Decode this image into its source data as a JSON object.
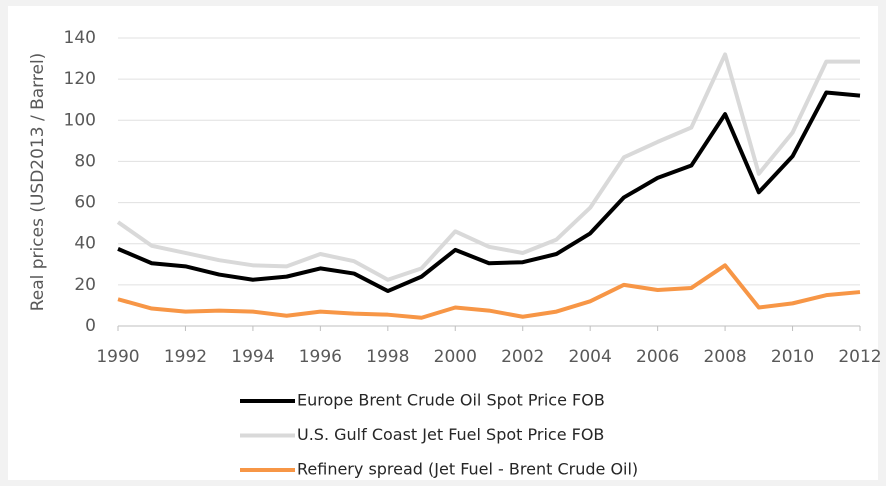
{
  "chart_data": {
    "type": "line",
    "y_label": "Real prices (USD2013 / Barrel)",
    "x": [
      1990,
      1991,
      1992,
      1993,
      1994,
      1995,
      1996,
      1997,
      1998,
      1999,
      2000,
      2001,
      2002,
      2003,
      2004,
      2005,
      2006,
      2007,
      2008,
      2009,
      2010,
      2011,
      2012
    ],
    "series": [
      {
        "name": "Europe Brent Crude Oil Spot Price FOB",
        "color": "#000000",
        "values": [
          37.5,
          30.5,
          29,
          25,
          22.5,
          24,
          28,
          25.5,
          17,
          24,
          37,
          30.5,
          31,
          35,
          45,
          62.5,
          72,
          78,
          103,
          65,
          82.5,
          113.5,
          112
        ]
      },
      {
        "name": "U.S. Gulf Coast Jet Fuel Spot Price FOB",
        "color": "#d9d9d9",
        "values": [
          50.5,
          39,
          35.5,
          32,
          29.5,
          29,
          35,
          31.5,
          22.5,
          28,
          46,
          38.5,
          35.5,
          42,
          57.5,
          82,
          89.5,
          96.5,
          132,
          74,
          94,
          128.5,
          128.5
        ]
      },
      {
        "name": "Refinery spread (Jet Fuel - Brent Crude Oil)",
        "color": "#f79646",
        "values": [
          13,
          8.5,
          7,
          7.5,
          7,
          5,
          7,
          6,
          5.5,
          4,
          9,
          7.5,
          4.5,
          7,
          12,
          20,
          17.5,
          18.5,
          29.5,
          9,
          11,
          15,
          16.5
        ]
      }
    ],
    "xlim": [
      1990,
      2012
    ],
    "xticks": [
      1990,
      1992,
      1994,
      1996,
      1998,
      2000,
      2002,
      2004,
      2006,
      2008,
      2010,
      2012
    ],
    "ylim": [
      0,
      140
    ],
    "yticks": [
      0,
      20,
      40,
      60,
      80,
      100,
      120,
      140
    ],
    "grid": true,
    "legend": "bottom"
  }
}
